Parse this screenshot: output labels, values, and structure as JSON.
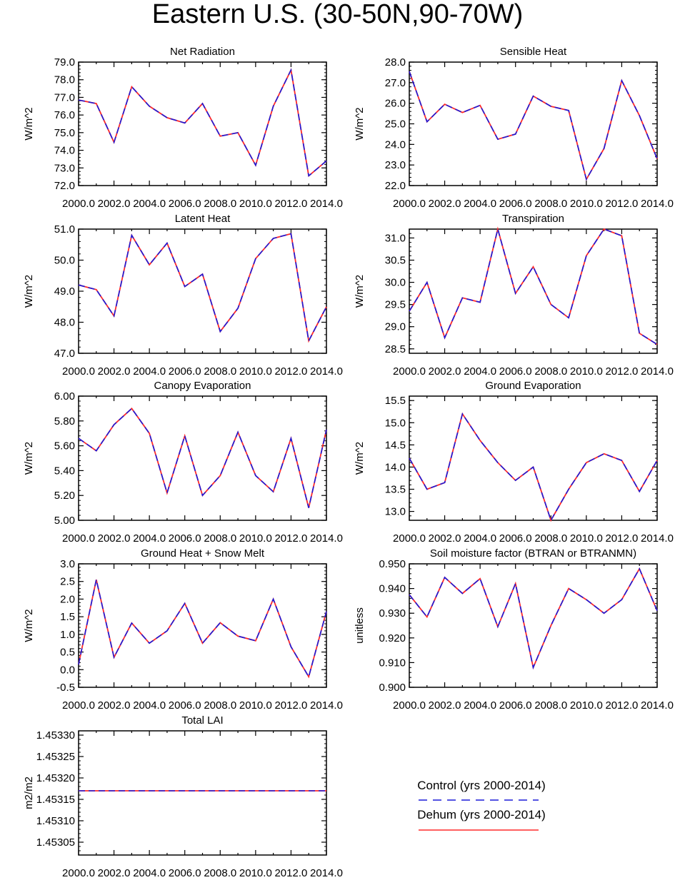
{
  "title": "Eastern U.S. (30-50N,90-70W)",
  "colors": {
    "control": "#1a1ad9",
    "dehum": "#ff2a2a",
    "axis": "#000000"
  },
  "legend": {
    "entries": [
      {
        "label": "Control (yrs 2000-2014)",
        "style": "dashed",
        "color": "#1a1ad9"
      },
      {
        "label": "Dehum (yrs 2000-2014)",
        "style": "solid",
        "color": "#ff2a2a"
      }
    ]
  },
  "chart_data": [
    {
      "type": "line",
      "title": "Net Radiation",
      "ylabel": "W/m^2",
      "xlim": [
        2000,
        2014
      ],
      "ylim": [
        72.0,
        79.0
      ],
      "yticks": [
        72.0,
        73.0,
        74.0,
        75.0,
        76.0,
        77.0,
        78.0,
        79.0
      ],
      "ytick_labels": [
        "72.0",
        "73.0",
        "74.0",
        "75.0",
        "76.0",
        "77.0",
        "78.0",
        "79.0"
      ],
      "xticks": [
        2000,
        2002,
        2004,
        2006,
        2008,
        2010,
        2012,
        2014
      ],
      "xtick_labels": [
        "2000.0",
        "2002.0",
        "2004.0",
        "2006.0",
        "2008.0",
        "2010.0",
        "2012.0",
        "2014.0"
      ],
      "x": [
        2000,
        2001,
        2002,
        2003,
        2004,
        2005,
        2006,
        2007,
        2008,
        2009,
        2010,
        2011,
        2012,
        2013,
        2014
      ],
      "series": [
        {
          "values": [
            76.85,
            76.65,
            74.45,
            77.6,
            76.5,
            75.85,
            75.55,
            76.65,
            74.8,
            75.0,
            73.15,
            76.5,
            78.55,
            72.55,
            73.4
          ]
        },
        {
          "values": [
            76.85,
            76.65,
            74.45,
            77.6,
            76.5,
            75.85,
            75.55,
            76.65,
            74.8,
            75.0,
            73.15,
            76.5,
            78.55,
            72.55,
            73.4
          ]
        }
      ]
    },
    {
      "type": "line",
      "title": "Sensible Heat",
      "ylabel": "W/m^2",
      "xlim": [
        2000,
        2014
      ],
      "ylim": [
        22.0,
        28.0
      ],
      "yticks": [
        22.0,
        23.0,
        24.0,
        25.0,
        26.0,
        27.0,
        28.0
      ],
      "ytick_labels": [
        "22.0",
        "23.0",
        "24.0",
        "25.0",
        "26.0",
        "27.0",
        "28.0"
      ],
      "xticks": [
        2000,
        2002,
        2004,
        2006,
        2008,
        2010,
        2012,
        2014
      ],
      "xtick_labels": [
        "2000.0",
        "2002.0",
        "2004.0",
        "2006.0",
        "2008.0",
        "2010.0",
        "2012.0",
        "2014.0"
      ],
      "x": [
        2000,
        2001,
        2002,
        2003,
        2004,
        2005,
        2006,
        2007,
        2008,
        2009,
        2010,
        2011,
        2012,
        2013,
        2014
      ],
      "series": [
        {
          "values": [
            27.55,
            25.1,
            25.95,
            25.55,
            25.9,
            24.25,
            24.5,
            26.35,
            25.85,
            25.65,
            22.3,
            23.8,
            27.1,
            25.4,
            23.3
          ]
        },
        {
          "values": [
            27.55,
            25.1,
            25.95,
            25.55,
            25.9,
            24.25,
            24.5,
            26.35,
            25.85,
            25.65,
            22.3,
            23.8,
            27.1,
            25.4,
            23.3
          ]
        }
      ]
    },
    {
      "type": "line",
      "title": "Latent Heat",
      "ylabel": "W/m^2",
      "xlim": [
        2000,
        2014
      ],
      "ylim": [
        47.0,
        51.0
      ],
      "yticks": [
        47.0,
        48.0,
        49.0,
        50.0,
        51.0
      ],
      "ytick_labels": [
        "47.0",
        "48.0",
        "49.0",
        "50.0",
        "51.0"
      ],
      "xticks": [
        2000,
        2002,
        2004,
        2006,
        2008,
        2010,
        2012,
        2014
      ],
      "xtick_labels": [
        "2000.0",
        "2002.0",
        "2004.0",
        "2006.0",
        "2008.0",
        "2010.0",
        "2012.0",
        "2014.0"
      ],
      "x": [
        2000,
        2001,
        2002,
        2003,
        2004,
        2005,
        2006,
        2007,
        2008,
        2009,
        2010,
        2011,
        2012,
        2013,
        2014
      ],
      "series": [
        {
          "values": [
            49.2,
            49.05,
            48.2,
            50.8,
            49.85,
            50.55,
            49.15,
            49.55,
            47.7,
            48.45,
            50.05,
            50.7,
            50.85,
            47.4,
            48.5
          ]
        },
        {
          "values": [
            49.2,
            49.05,
            48.2,
            50.8,
            49.85,
            50.55,
            49.15,
            49.55,
            47.7,
            48.45,
            50.05,
            50.7,
            50.85,
            47.4,
            48.5
          ]
        }
      ]
    },
    {
      "type": "line",
      "title": "Transpiration",
      "ylabel": "W/m^2",
      "xlim": [
        2000,
        2014
      ],
      "ylim": [
        28.4,
        31.2
      ],
      "yticks": [
        28.5,
        29.0,
        29.5,
        30.0,
        30.5,
        31.0
      ],
      "ytick_labels": [
        "28.5",
        "29.0",
        "29.5",
        "30.0",
        "30.5",
        "31.0"
      ],
      "xticks": [
        2000,
        2002,
        2004,
        2006,
        2008,
        2010,
        2012,
        2014
      ],
      "xtick_labels": [
        "2000.0",
        "2002.0",
        "2004.0",
        "2006.0",
        "2008.0",
        "2010.0",
        "2012.0",
        "2014.0"
      ],
      "x": [
        2000,
        2001,
        2002,
        2003,
        2004,
        2005,
        2006,
        2007,
        2008,
        2009,
        2010,
        2011,
        2012,
        2013,
        2014
      ],
      "series": [
        {
          "values": [
            29.35,
            30.0,
            28.75,
            29.65,
            29.55,
            31.2,
            29.75,
            30.35,
            29.5,
            29.2,
            30.6,
            31.2,
            31.05,
            28.85,
            28.6
          ]
        },
        {
          "values": [
            29.35,
            30.0,
            28.75,
            29.65,
            29.55,
            31.2,
            29.75,
            30.35,
            29.5,
            29.2,
            30.6,
            31.2,
            31.05,
            28.85,
            28.6
          ]
        }
      ]
    },
    {
      "type": "line",
      "title": "Canopy Evaporation",
      "ylabel": "W/m^2",
      "xlim": [
        2000,
        2014
      ],
      "ylim": [
        5.0,
        6.0
      ],
      "yticks": [
        5.0,
        5.2,
        5.4,
        5.6,
        5.8,
        6.0
      ],
      "ytick_labels": [
        "5.00",
        "5.20",
        "5.40",
        "5.60",
        "5.80",
        "6.00"
      ],
      "xticks": [
        2000,
        2002,
        2004,
        2006,
        2008,
        2010,
        2012,
        2014
      ],
      "xtick_labels": [
        "2000.0",
        "2002.0",
        "2004.0",
        "2006.0",
        "2008.0",
        "2010.0",
        "2012.0",
        "2014.0"
      ],
      "x": [
        2000,
        2001,
        2002,
        2003,
        2004,
        2005,
        2006,
        2007,
        2008,
        2009,
        2010,
        2011,
        2012,
        2013,
        2014
      ],
      "series": [
        {
          "values": [
            5.66,
            5.56,
            5.77,
            5.9,
            5.7,
            5.22,
            5.68,
            5.2,
            5.36,
            5.71,
            5.36,
            5.23,
            5.66,
            5.1,
            5.73
          ]
        },
        {
          "values": [
            5.66,
            5.56,
            5.77,
            5.9,
            5.7,
            5.22,
            5.68,
            5.2,
            5.36,
            5.71,
            5.36,
            5.23,
            5.66,
            5.1,
            5.73
          ]
        }
      ]
    },
    {
      "type": "line",
      "title": "Ground Evaporation",
      "ylabel": "W/m^2",
      "xlim": [
        2000,
        2014
      ],
      "ylim": [
        12.8,
        15.6
      ],
      "yticks": [
        13.0,
        13.5,
        14.0,
        14.5,
        15.0,
        15.5
      ],
      "ytick_labels": [
        "13.0",
        "13.5",
        "14.0",
        "14.5",
        "15.0",
        "15.5"
      ],
      "xticks": [
        2000,
        2002,
        2004,
        2006,
        2008,
        2010,
        2012,
        2014
      ],
      "xtick_labels": [
        "2000.0",
        "2002.0",
        "2004.0",
        "2006.0",
        "2008.0",
        "2010.0",
        "2012.0",
        "2014.0"
      ],
      "x": [
        2000,
        2001,
        2002,
        2003,
        2004,
        2005,
        2006,
        2007,
        2008,
        2009,
        2010,
        2011,
        2012,
        2013,
        2014
      ],
      "series": [
        {
          "values": [
            14.2,
            13.5,
            13.65,
            15.2,
            14.6,
            14.1,
            13.7,
            14.0,
            12.8,
            13.5,
            14.1,
            14.3,
            14.15,
            13.45,
            14.15
          ]
        },
        {
          "values": [
            14.2,
            13.5,
            13.65,
            15.2,
            14.6,
            14.1,
            13.7,
            14.0,
            12.8,
            13.5,
            14.1,
            14.3,
            14.15,
            13.45,
            14.15
          ]
        }
      ]
    },
    {
      "type": "line",
      "title": "Ground Heat + Snow Melt",
      "ylabel": "W/m^2",
      "xlim": [
        2000,
        2014
      ],
      "ylim": [
        -0.5,
        3.0
      ],
      "yticks": [
        -0.5,
        0.0,
        0.5,
        1.0,
        1.5,
        2.0,
        2.5,
        3.0
      ],
      "ytick_labels": [
        "-0.5",
        "0.0",
        "0.5",
        "1.0",
        "1.5",
        "2.0",
        "2.5",
        "3.0"
      ],
      "xticks": [
        2000,
        2002,
        2004,
        2006,
        2008,
        2010,
        2012,
        2014
      ],
      "xtick_labels": [
        "2000.0",
        "2002.0",
        "2004.0",
        "2006.0",
        "2008.0",
        "2010.0",
        "2012.0",
        "2014.0"
      ],
      "x": [
        2000,
        2001,
        2002,
        2003,
        2004,
        2005,
        2006,
        2007,
        2008,
        2009,
        2010,
        2011,
        2012,
        2013,
        2014
      ],
      "series": [
        {
          "values": [
            0.15,
            2.55,
            0.35,
            1.32,
            0.75,
            1.1,
            1.88,
            0.75,
            1.33,
            0.95,
            0.82,
            2.0,
            0.65,
            -0.2,
            1.65
          ]
        },
        {
          "values": [
            0.15,
            2.55,
            0.35,
            1.32,
            0.75,
            1.1,
            1.88,
            0.75,
            1.33,
            0.95,
            0.82,
            2.0,
            0.65,
            -0.2,
            1.65
          ]
        }
      ]
    },
    {
      "type": "line",
      "title": "Soil moisture factor (BTRAN or BTRANMN)",
      "ylabel": "unitless",
      "xlim": [
        2000,
        2014
      ],
      "ylim": [
        0.9,
        0.95
      ],
      "yticks": [
        0.9,
        0.91,
        0.92,
        0.93,
        0.94,
        0.95
      ],
      "ytick_labels": [
        "0.900",
        "0.910",
        "0.920",
        "0.930",
        "0.940",
        "0.950"
      ],
      "xticks": [
        2000,
        2002,
        2004,
        2006,
        2008,
        2010,
        2012,
        2014
      ],
      "xtick_labels": [
        "2000.0",
        "2002.0",
        "2004.0",
        "2006.0",
        "2008.0",
        "2010.0",
        "2012.0",
        "2014.0"
      ],
      "x": [
        2000,
        2001,
        2002,
        2003,
        2004,
        2005,
        2006,
        2007,
        2008,
        2009,
        2010,
        2011,
        2012,
        2013,
        2014
      ],
      "series": [
        {
          "values": [
            0.9375,
            0.9285,
            0.9445,
            0.938,
            0.944,
            0.9245,
            0.942,
            0.908,
            0.925,
            0.94,
            0.9355,
            0.93,
            0.9355,
            0.948,
            0.931
          ]
        },
        {
          "values": [
            0.9375,
            0.9285,
            0.9445,
            0.938,
            0.944,
            0.9245,
            0.942,
            0.908,
            0.925,
            0.94,
            0.9355,
            0.93,
            0.9355,
            0.948,
            0.931
          ]
        }
      ]
    },
    {
      "type": "line",
      "title": "Total LAI",
      "ylabel": "m2/m2",
      "xlim": [
        2000,
        2014
      ],
      "ylim": [
        1.45302,
        1.45331
      ],
      "yticks": [
        1.45305,
        1.4531,
        1.45315,
        1.4532,
        1.45325,
        1.4533
      ],
      "ytick_labels": [
        "1.45305",
        "1.45310",
        "1.45315",
        "1.45320",
        "1.45325",
        "1.45330"
      ],
      "xticks": [
        2000,
        2002,
        2004,
        2006,
        2008,
        2010,
        2012,
        2014
      ],
      "xtick_labels": [
        "2000.0",
        "2002.0",
        "2004.0",
        "2006.0",
        "2008.0",
        "2010.0",
        "2012.0",
        "2014.0"
      ],
      "x": [
        2000,
        2001,
        2002,
        2003,
        2004,
        2005,
        2006,
        2007,
        2008,
        2009,
        2010,
        2011,
        2012,
        2013,
        2014
      ],
      "series": [
        {
          "values": [
            1.45317,
            1.45317,
            1.45317,
            1.45317,
            1.45317,
            1.45317,
            1.45317,
            1.45317,
            1.45317,
            1.45317,
            1.45317,
            1.45317,
            1.45317,
            1.45317,
            1.45317
          ]
        },
        {
          "values": [
            1.45317,
            1.45317,
            1.45317,
            1.45317,
            1.45317,
            1.45317,
            1.45317,
            1.45317,
            1.45317,
            1.45317,
            1.45317,
            1.45317,
            1.45317,
            1.45317,
            1.45317
          ]
        }
      ]
    }
  ]
}
